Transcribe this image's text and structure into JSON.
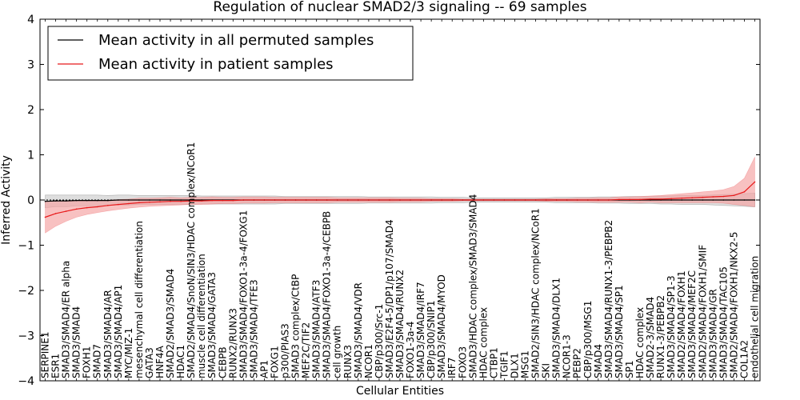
{
  "chart_data": {
    "type": "line",
    "title": "Regulation of nuclear SMAD2/3 signaling -- 69 samples",
    "xlabel": "Cellular Entities",
    "ylabel": "Inferred Activity",
    "ylim": [
      -4,
      4
    ],
    "yticks": [
      4,
      3,
      2,
      1,
      0,
      -1,
      -2,
      -3,
      -4
    ],
    "grid": false,
    "legend_position": "top-left",
    "colors": {
      "permuted": "#000000",
      "patient": "#e8191a",
      "patient_band": "#f4a0a0",
      "permuted_band": "#c8c8c8"
    },
    "categories": [
      "SERPINE1",
      "ESR1",
      "SMAD3/SMAD4/ER alpha",
      "SMAD3/SMAD4",
      "FOXH1",
      "SMAD7",
      "SMAD3/SMAD4/AR",
      "SMAD3/SMAD4/AP1",
      "MYC/MIZ-1",
      "mesenchymal cell differentiation",
      "GATA3",
      "HNF4A",
      "SMAD2/SMAD3/SMAD4",
      "HDAC1",
      "SMAD2/SMAD4/SnoN/SIN3/HDAC complex/NCoR1",
      "muscle cell differentiation",
      "SMAD3/SMAD4/GATA3",
      "CEBPB",
      "RUNX2/RUNX3",
      "SMAD3/SMAD4/FOXO1-3a-4/FOXG1",
      "SMAD3/SMAD4/TFE3",
      "AP1",
      "FOXG1",
      "p300/PIAS3",
      "SMAD3 complex/CtBP",
      "MEF2C/TIF2",
      "SMAD3/SMAD4/ATF3",
      "SMAD3/SMAD4/FOXO1-3a-4/CEBPB",
      "cell growth",
      "RUNX3",
      "SMAD3/SMAD4/VDR",
      "NCOR1",
      "CBP/p300/Src-1",
      "SMAD3/E2F4-5/DP1/p107/SMAD4",
      "SMAD3/SMAD4/RUNX2",
      "FOXO1-3a-4",
      "SMAD3/SMAD4/IRF7",
      "CBP/p300/SNIP1",
      "SMAD3/SMAD4/MYOD",
      "IRF7",
      "FOXO3",
      "SMAD3/HDAC complex/SMAD3/SMAD4",
      "HDAC complex",
      "CTBP1",
      "TGIF1",
      "DLX1",
      "MSG1",
      "SMAD2/SIN3/HDAC complex/NCoR1",
      "SKI",
      "SMAD3/SMAD4/DLX1",
      "NCOR1-3",
      "PEBP2",
      "CBP/p300/MSG1",
      "SMAD4",
      "SMAD3/SMAD4/RUNX1-3/PEBPB2",
      "SMAD3/SMAD4/SP1",
      "SP1",
      "HDAC complex",
      "SMAD2-3/SMAD4",
      "RUNX1-3/PEBPB2",
      "SMAD3/SMAD4/SP1-3",
      "SMAD2/SMAD4/FOXH1",
      "SMAD3/SMAD4/MEF2C",
      "SMAD2/SMAD4/FOXH1/SMIF",
      "SMAD3/SMAD4/GR",
      "SMAD3/SMAD4/TAC105",
      "SMAD2/SMAD4/FOXH1/NKX2-5",
      "COL1A2",
      "endothelial cell migration"
    ],
    "series": [
      {
        "name": "Mean activity in all permuted samples",
        "values": [
          -0.03,
          -0.02,
          -0.02,
          -0.01,
          -0.01,
          -0.01,
          -0.01,
          0,
          0,
          0,
          0,
          0,
          0,
          0,
          0,
          0,
          0,
          0,
          0,
          0,
          0,
          0,
          0,
          0,
          0,
          0,
          0,
          0,
          0,
          0,
          0,
          0,
          0,
          0,
          0,
          0,
          0,
          0,
          0,
          0,
          0,
          0,
          0,
          0,
          0,
          0,
          0,
          0,
          0,
          0,
          0,
          0,
          0,
          0,
          0,
          0,
          0,
          0,
          0,
          0,
          0,
          0,
          0,
          0,
          0,
          0,
          0,
          0,
          0
        ],
        "band": [
          0.14,
          0.13,
          0.13,
          0.12,
          0.12,
          0.12,
          0.11,
          0.11,
          0.11,
          0.1,
          0.1,
          0.1,
          0.1,
          0.1,
          0.1,
          0.09,
          0.09,
          0.09,
          0.09,
          0.09,
          0.09,
          0.09,
          0.09,
          0.08,
          0.08,
          0.08,
          0.08,
          0.08,
          0.08,
          0.08,
          0.08,
          0.07,
          0.07,
          0.07,
          0.07,
          0.07,
          0.07,
          0.07,
          0.06,
          0.06,
          0.06,
          0.05,
          0.05,
          0.05,
          0.05,
          0.05,
          0.05,
          0.05,
          0.05,
          0.06,
          0.06,
          0.06,
          0.06,
          0.07,
          0.07,
          0.07,
          0.08,
          0.08,
          0.08,
          0.09,
          0.09,
          0.1,
          0.1,
          0.1,
          0.11,
          0.12,
          0.13,
          0.14,
          0.15
        ]
      },
      {
        "name": "Mean activity in patient samples",
        "values": [
          -0.38,
          -0.3,
          -0.25,
          -0.2,
          -0.17,
          -0.15,
          -0.12,
          -0.1,
          -0.08,
          -0.06,
          -0.05,
          -0.04,
          -0.03,
          -0.03,
          -0.02,
          -0.02,
          -0.01,
          -0.01,
          -0.01,
          0,
          0,
          0,
          0,
          0,
          0,
          0,
          0,
          0,
          0,
          0,
          0,
          0,
          0,
          0,
          0,
          0,
          0,
          0,
          0,
          0,
          0,
          0,
          0,
          0,
          0,
          0,
          0,
          0,
          0,
          0,
          0,
          0,
          0,
          0,
          0,
          0.01,
          0.01,
          0.01,
          0.02,
          0.02,
          0.03,
          0.04,
          0.05,
          0.06,
          0.07,
          0.08,
          0.1,
          0.18,
          0.4
        ],
        "band": [
          0.35,
          0.28,
          0.22,
          0.18,
          0.15,
          0.13,
          0.12,
          0.11,
          0.1,
          0.1,
          0.09,
          0.09,
          0.09,
          0.08,
          0.08,
          0.08,
          0.08,
          0.07,
          0.07,
          0.07,
          0.07,
          0.07,
          0.06,
          0.06,
          0.06,
          0.06,
          0.06,
          0.06,
          0.05,
          0.05,
          0.05,
          0.05,
          0.05,
          0.05,
          0.04,
          0.04,
          0.04,
          0.03,
          0.03,
          0.03,
          0.02,
          0.02,
          0.02,
          0.02,
          0.02,
          0.02,
          0.02,
          0.02,
          0.03,
          0.03,
          0.03,
          0.04,
          0.04,
          0.05,
          0.05,
          0.06,
          0.06,
          0.07,
          0.07,
          0.08,
          0.09,
          0.1,
          0.11,
          0.12,
          0.13,
          0.15,
          0.2,
          0.3,
          0.55
        ]
      }
    ]
  }
}
